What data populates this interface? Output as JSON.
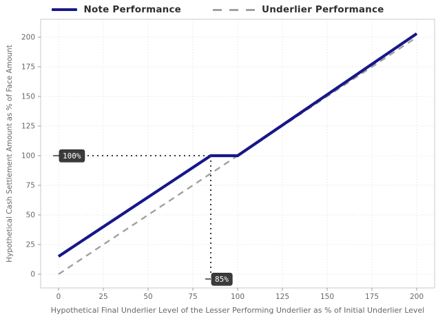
{
  "legend": {
    "items": [
      {
        "label": "Note Performance"
      },
      {
        "label": "Underlier Performance"
      }
    ]
  },
  "chart_data": {
    "type": "line",
    "title": "",
    "xlabel": "Hypothetical Final Underlier Level of the Lesser Performing Underlier as % of Initial Underlier Level",
    "ylabel": "Hypothetical Cash Settlement Amount as % of Face Amount",
    "xlim": [
      -10,
      210
    ],
    "ylim": [
      -11.6,
      215.1
    ],
    "xticks": [
      0,
      25,
      50,
      75,
      100,
      125,
      150,
      175,
      200
    ],
    "yticks": [
      0,
      25,
      50,
      75,
      100,
      125,
      150,
      175,
      200
    ],
    "grid": true,
    "legend_position": "top-center",
    "series": [
      {
        "name": "Note Performance",
        "style": "solid",
        "color": "#17178a",
        "width": 4.2,
        "points": [
          [
            0,
            15
          ],
          [
            85,
            100
          ],
          [
            100,
            100
          ],
          [
            200,
            203
          ]
        ]
      },
      {
        "name": "Underlier Performance",
        "style": "dashed",
        "color": "#a0a0a0",
        "width": 2.4,
        "points": [
          [
            0,
            0
          ],
          [
            200,
            200
          ]
        ]
      }
    ],
    "annotations": [
      {
        "label": "100%",
        "orientation": "horizontal",
        "value": 100,
        "line_from": [
          0,
          100
        ],
        "line_to": [
          85,
          100
        ],
        "box_at": [
          0,
          100
        ]
      },
      {
        "label": "85%",
        "orientation": "vertical",
        "value": 85,
        "line_from": [
          85,
          100
        ],
        "line_to": [
          85,
          0
        ],
        "box_at": [
          85,
          0
        ]
      }
    ],
    "colors": {
      "note_line": "#17178a",
      "underlier_line": "#a0a0a0",
      "grid": "#dcdcdc",
      "frame": "#c9c9c9",
      "tick_mark": "#999999",
      "tick_text": "#666666",
      "axis_label_text": "#666666",
      "legend_text": "#2e2e2e",
      "annotation_box_bg": "#3b3b3b",
      "annotation_box_border": "#2a2a2a",
      "annotation_text": "#ffffff",
      "annotation_dotted": "#333344",
      "background": "#ffffff"
    }
  }
}
